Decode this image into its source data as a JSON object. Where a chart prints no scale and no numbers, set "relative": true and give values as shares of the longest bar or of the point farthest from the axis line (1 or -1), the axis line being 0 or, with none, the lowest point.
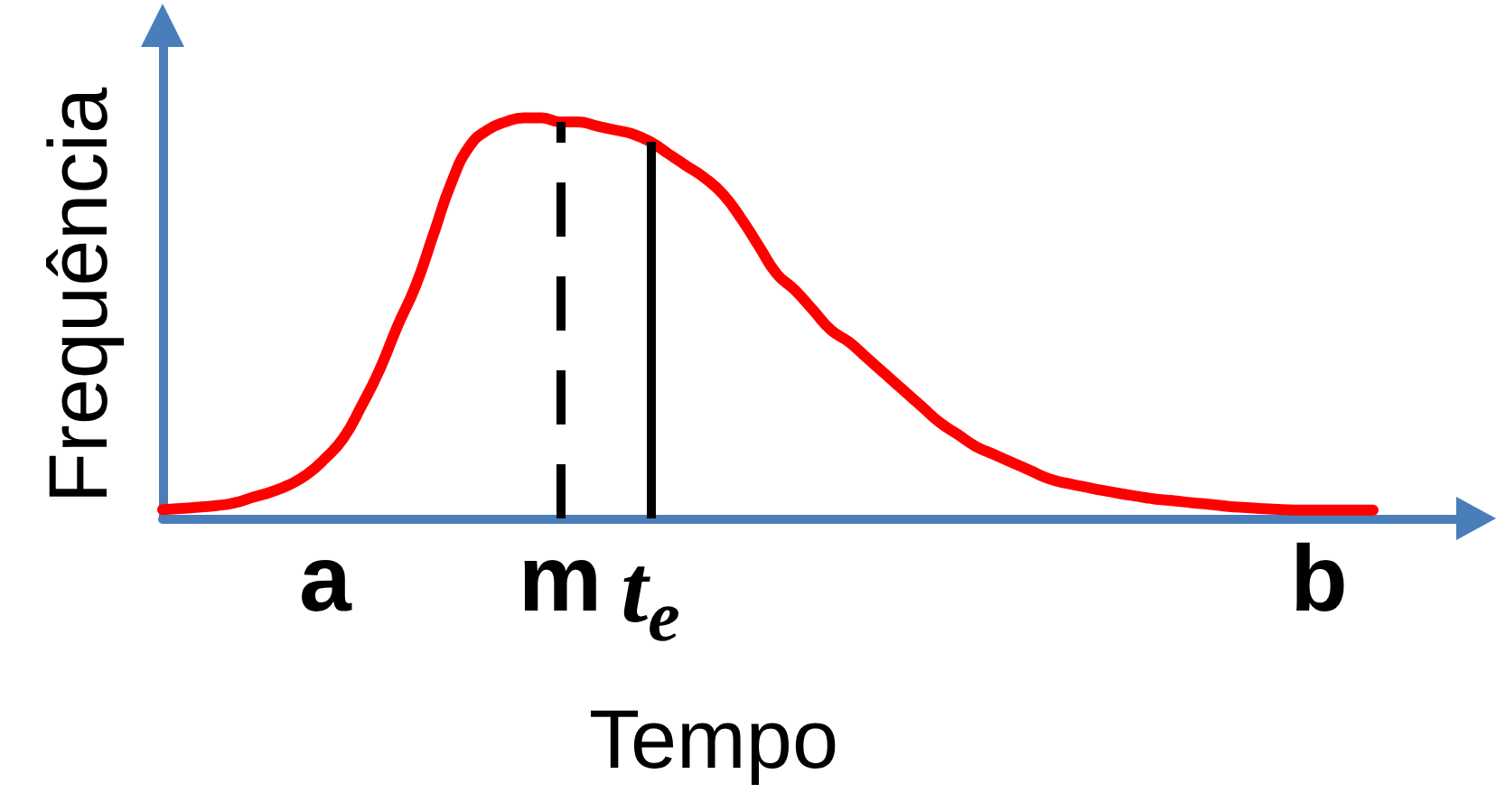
{
  "chart_data": {
    "type": "line",
    "xlabel": "Tempo",
    "ylabel": "Frequência",
    "relative": true,
    "marker": "none",
    "color": "#ff0000",
    "categories": [
      null,
      null,
      null,
      null,
      null,
      null,
      null,
      null,
      null,
      "a",
      null,
      null,
      null,
      null,
      null,
      null,
      null,
      null,
      null,
      null,
      null,
      null,
      "m",
      null,
      null,
      null,
      null,
      "t$_{e}$",
      null,
      null,
      null,
      null,
      null,
      null,
      null,
      null,
      null,
      null,
      null,
      null,
      null,
      null,
      null,
      null,
      null,
      null,
      null,
      null,
      null,
      null,
      null,
      null,
      null,
      null,
      null,
      null,
      null,
      null,
      null,
      null,
      null,
      null,
      null,
      null,
      "b",
      null,
      null,
      null,
      null,
      null,
      null,
      null,
      null,
      null
    ],
    "values": [
      0.022,
      0.025,
      0.028,
      0.032,
      0.039,
      0.053,
      0.066,
      0.084,
      0.11,
      0.15,
      0.2,
      0.28,
      0.37,
      0.48,
      0.58,
      0.71,
      0.84,
      0.93,
      0.97,
      0.99,
      1,
      1,
      0.99,
      0.99,
      0.98,
      0.97,
      0.96,
      0.94,
      0.91,
      0.88,
      0.85,
      0.81,
      0.75,
      0.68,
      0.61,
      0.57,
      0.52,
      0.47,
      0.44,
      0.4,
      0.36,
      0.32,
      0.28,
      0.24,
      0.21,
      0.18,
      0.16,
      0.14,
      0.12,
      0.1,
      0.088,
      0.079,
      0.07,
      0.062,
      0.055,
      0.048,
      0.044,
      0.039,
      0.035,
      0.03,
      0.027,
      0.024,
      0.022,
      0.021,
      0.021,
      0.021,
      0.021,
      0.021,
      null,
      null,
      null,
      null,
      null,
      null
    ],
    "ref_lines": [
      {
        "axis": "x",
        "value": "m",
        "color": "#000000",
        "line_style": "dashed"
      },
      {
        "axis": "x",
        "value": "t$_{e}$",
        "color": "#000000",
        "line_style": "solid"
      }
    ]
  }
}
